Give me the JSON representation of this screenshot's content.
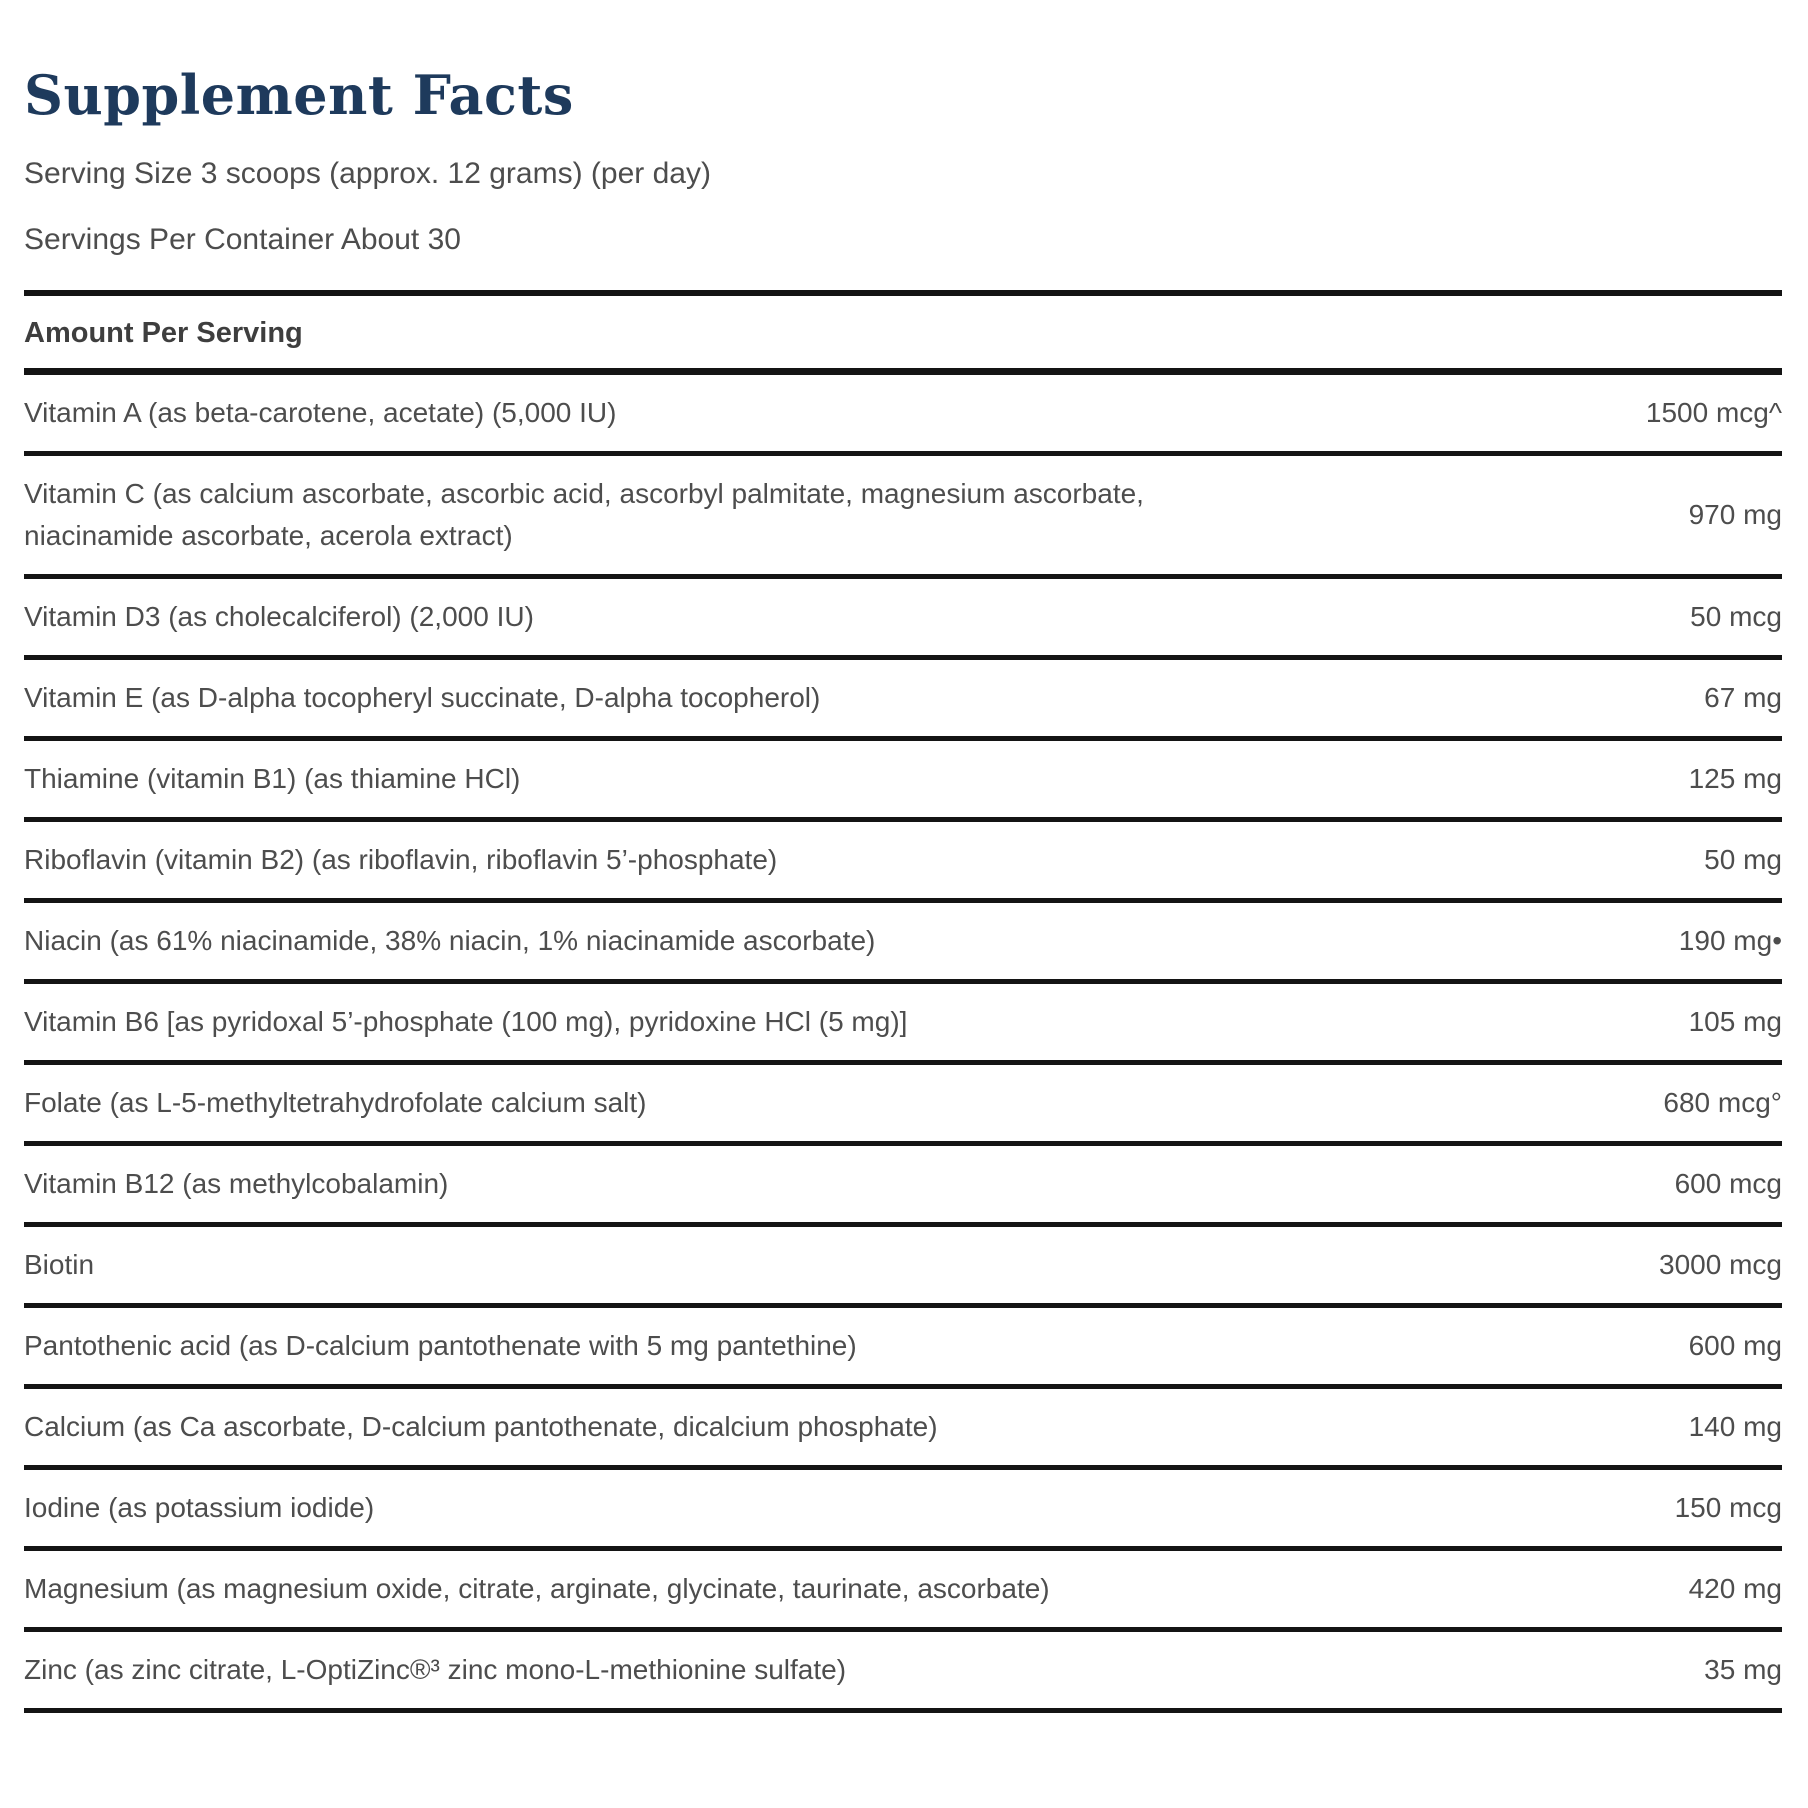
{
  "label": {
    "title": "Supplement Facts",
    "serving_size": "Serving Size 3 scoops (approx. 12 grams) (per day)",
    "servings_per_container": "Servings Per Container About 30"
  },
  "table": {
    "header": "Amount Per Serving",
    "columns": [
      "name",
      "amount"
    ],
    "rows": [
      {
        "name": "Vitamin A (as beta-carotene, acetate) (5,000 IU)",
        "amount": "1500 mcg^"
      },
      {
        "name": "Vitamin C (as calcium ascorbate, ascorbic acid, ascorbyl palmitate, magnesium ascorbate, niacinamide ascorbate, acerola extract)",
        "amount": "970 mg"
      },
      {
        "name": "Vitamin D3 (as cholecalciferol) (2,000 IU)",
        "amount": "50 mcg"
      },
      {
        "name": "Vitamin E (as D-alpha tocopheryl succinate, D-alpha tocopherol)",
        "amount": "67 mg"
      },
      {
        "name": "Thiamine (vitamin B1) (as thiamine HCl)",
        "amount": "125 mg"
      },
      {
        "name": "Riboflavin (vitamin B2) (as riboflavin, riboflavin 5’-phosphate)",
        "amount": "50 mg"
      },
      {
        "name": "Niacin (as 61% niacinamide, 38% niacin, 1% niacinamide ascorbate)",
        "amount": "190 mg•"
      },
      {
        "name": "Vitamin B6 [as pyridoxal 5’-phosphate (100 mg), pyridoxine HCl (5 mg)]",
        "amount": "105 mg"
      },
      {
        "name": "Folate (as L-5-methyltetrahydrofolate calcium salt)",
        "amount": "680 mcg°"
      },
      {
        "name": "Vitamin B12 (as methylcobalamin)",
        "amount": "600 mcg"
      },
      {
        "name": "Biotin",
        "amount": "3000 mcg"
      },
      {
        "name": "Pantothenic acid (as D-calcium pantothenate with 5 mg pantethine)",
        "amount": "600 mg"
      },
      {
        "name": "Calcium (as Ca ascorbate, D-calcium pantothenate, dicalcium phosphate)",
        "amount": "140 mg"
      },
      {
        "name": "Iodine (as potassium iodide)",
        "amount": "150 mcg"
      },
      {
        "name": "Magnesium (as magnesium oxide, citrate, arginate, glycinate, taurinate, ascorbate)",
        "amount": "420 mg"
      },
      {
        "name": "Zinc (as zinc citrate, L-OptiZinc®³ zinc mono-L-methionine sulfate)",
        "amount": "35 mg"
      }
    ]
  },
  "colors": {
    "title_navy": "#1e3a5c",
    "body_text": "#4d4d4d",
    "rule_black": "#141414",
    "background": "#ffffff"
  }
}
